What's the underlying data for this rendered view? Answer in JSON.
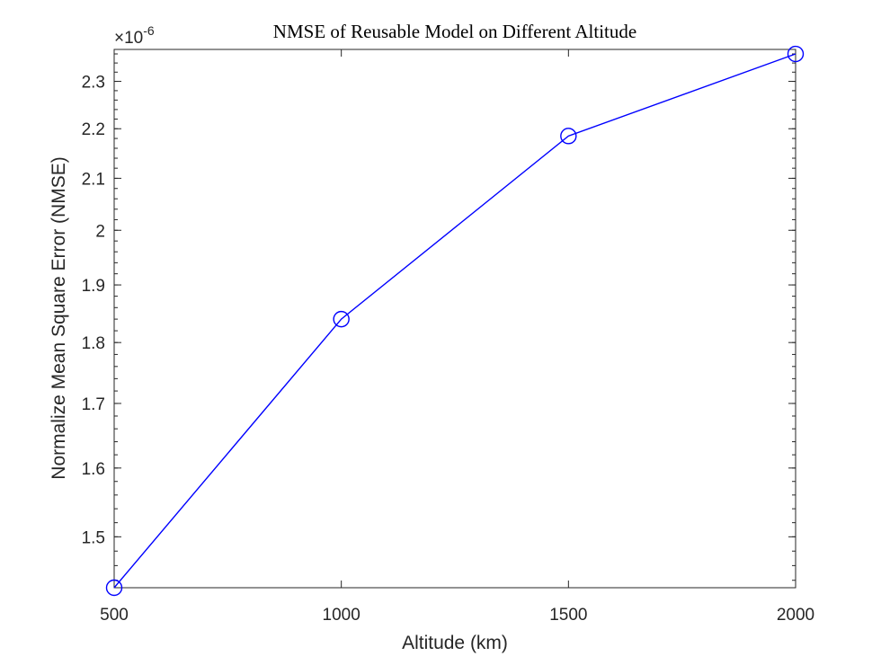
{
  "chart_data": {
    "type": "line",
    "title": "NMSE of Reusable Model on Different Altitude",
    "xlabel": "Altitude (km)",
    "ylabel": "Normalize Mean Square Error (NMSE)",
    "exponent_label": "×10",
    "exponent_power": "-6",
    "y_scale": "log",
    "x": [
      500,
      1000,
      1500,
      2000
    ],
    "series": [
      {
        "values": [
          1.43,
          1.84,
          2.185,
          2.36
        ],
        "color": "#0000ff",
        "marker": "circle"
      }
    ],
    "xlim": [
      500,
      2000
    ],
    "ylim": [
      1.43,
      2.37
    ],
    "xticks": [
      500,
      1000,
      1500,
      2000
    ],
    "xtick_labels": [
      "500",
      "1000",
      "1500",
      "2000"
    ],
    "yticks": [
      1.5,
      1.6,
      1.7,
      1.8,
      1.9,
      2.0,
      2.1,
      2.2,
      2.3
    ],
    "ytick_labels": [
      "1.5",
      "1.6",
      "1.7",
      "1.8",
      "1.9",
      "2",
      "2.1",
      "2.2",
      "2.3"
    ],
    "grid": false,
    "legend": "none"
  }
}
